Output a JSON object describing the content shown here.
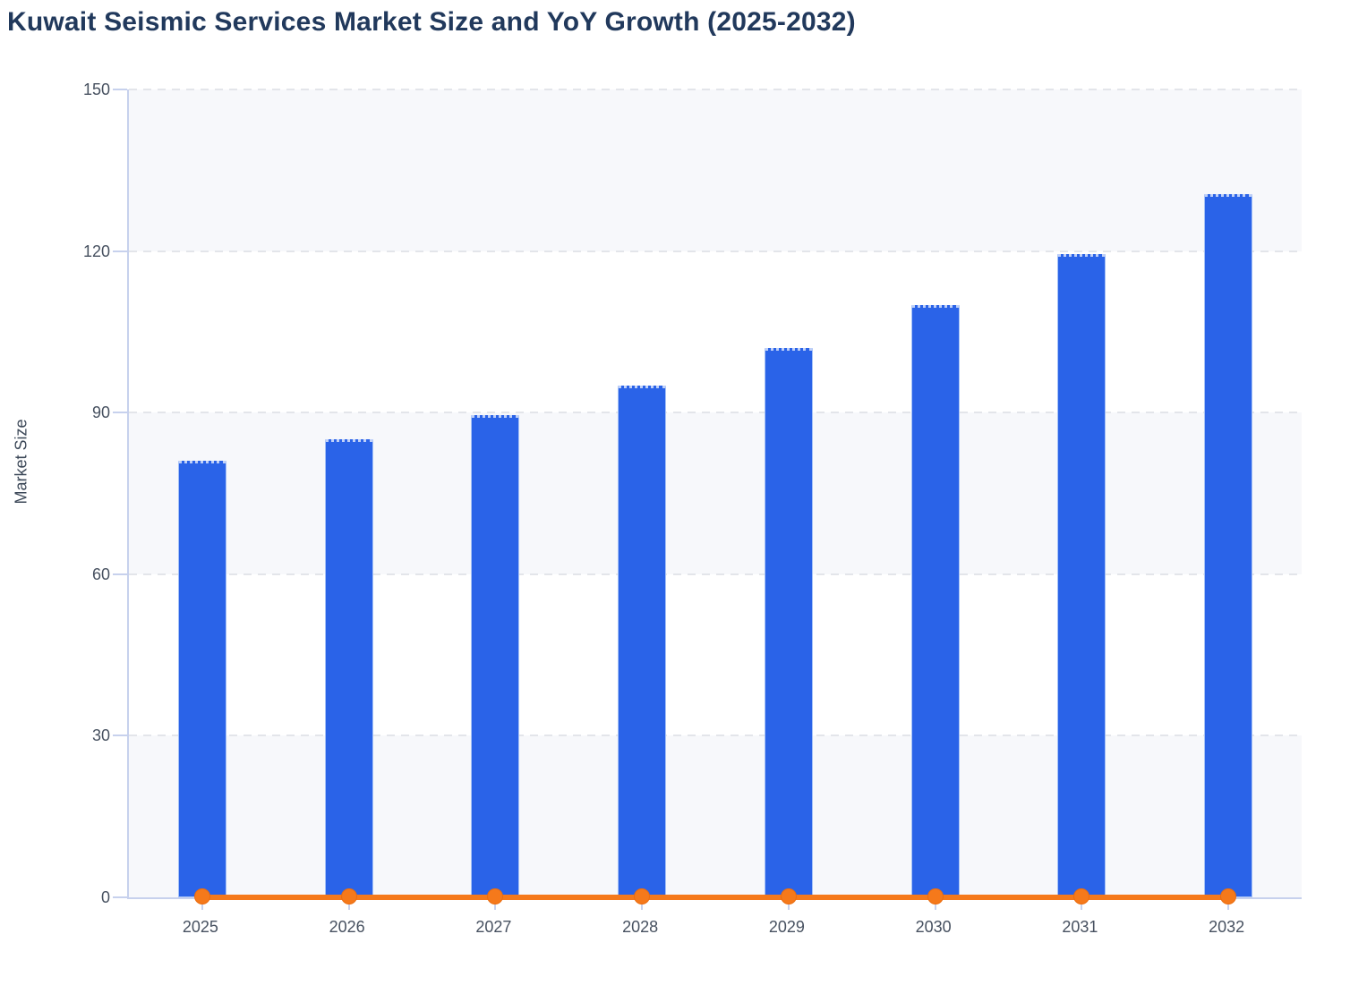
{
  "page_title": "Kuwait Seismic Services Market Size and YoY Growth (2025-2032)",
  "colors": {
    "title_text": "#21395c",
    "axis_text": "#475160",
    "axis_line": "#c7d1ed",
    "gridline": "#e3e5ea",
    "band_fill": "#f7f8fb",
    "bar_fill": "#2a63e8",
    "line_stroke": "#f5791b",
    "bg": "#ffffff"
  },
  "chart_data": {
    "type": "bar",
    "title": "Kuwait Seismic Services Market Size and YoY Growth (2025-2032)",
    "categories": [
      "2025",
      "2026",
      "2027",
      "2028",
      "2029",
      "2030",
      "2031",
      "2032"
    ],
    "series": [
      {
        "name": "Market Size",
        "type": "bar",
        "color": "#2a63e8",
        "values": [
          81,
          85,
          89.5,
          95,
          102,
          110,
          119.5,
          130.5
        ]
      },
      {
        "name": "YoY Growth",
        "type": "line",
        "color": "#f5791b",
        "values": [
          0,
          0,
          0,
          0,
          0,
          0,
          0,
          0
        ]
      }
    ],
    "xlabel": "",
    "ylabel": "Market Size",
    "ylim": [
      0,
      150
    ],
    "yticks": [
      0,
      30,
      60,
      90,
      120,
      150
    ],
    "grid": "horizontal-dashed",
    "legend": "none",
    "plot_bands_alternating": true
  }
}
